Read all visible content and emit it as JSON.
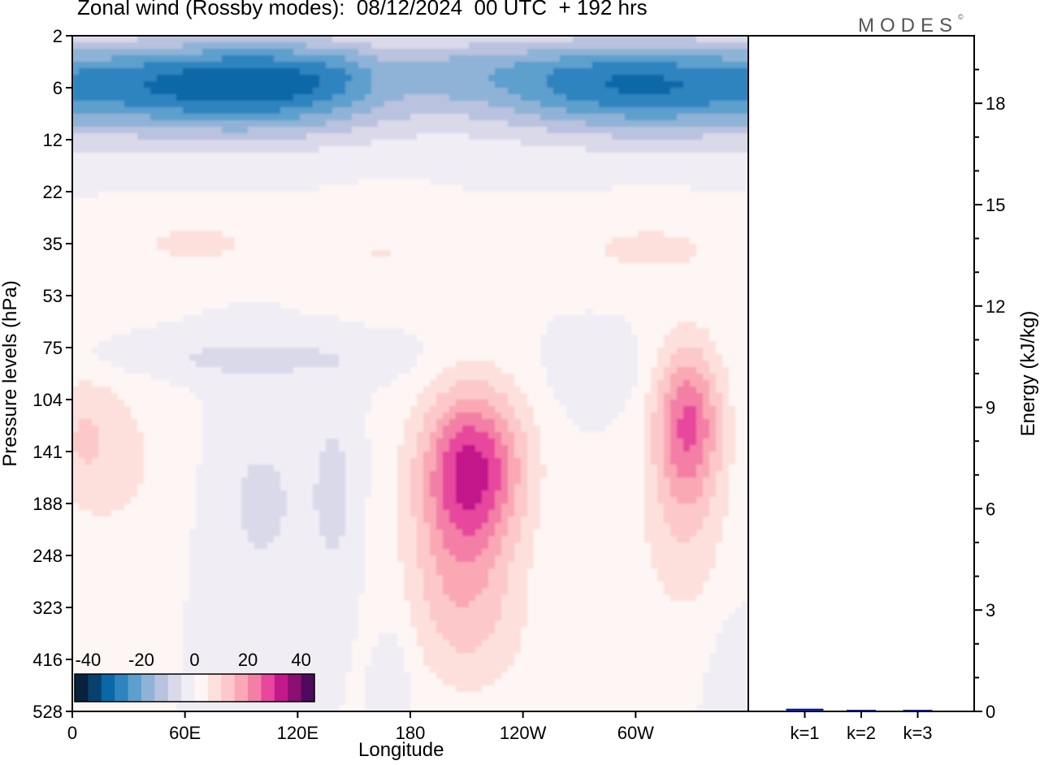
{
  "title": "Zonal wind (Rossby modes):  08/12/2024  00 UTC  + 192 hrs",
  "brand": "MODES",
  "brand_mark": "©",
  "chart_data": [
    {
      "type": "heatmap",
      "xlabel": "Longitude",
      "ylabel": "Pressure levels (hPa)",
      "x_ticks": [
        "0",
        "60E",
        "120E",
        "180",
        "120W",
        "60W"
      ],
      "x_range_deg_east": [
        0,
        360
      ],
      "x_tick_positions_deg_east": [
        0,
        60,
        120,
        180,
        240,
        300
      ],
      "y_ticks": [
        "2",
        "6",
        "12",
        "22",
        "35",
        "53",
        "75",
        "104",
        "141",
        "188",
        "248",
        "323",
        "416",
        "528"
      ],
      "y_range_hPa": [
        2,
        528
      ],
      "colorbar": {
        "tick_labels": [
          "-40",
          "-20",
          "0",
          "20",
          "40"
        ],
        "levels": [
          -45,
          -40,
          -35,
          -30,
          -25,
          -20,
          -15,
          -10,
          -5,
          0,
          5,
          10,
          15,
          20,
          25,
          30,
          35,
          40,
          45
        ],
        "colors": [
          "#08213f",
          "#08406e",
          "#0868a8",
          "#2f84bf",
          "#5d9fcd",
          "#8fb3d6",
          "#b9c2de",
          "#dad9ea",
          "#f0edf5",
          "#fdf6f4",
          "#fde0dc",
          "#fcc8c9",
          "#f9a8b4",
          "#f37fa6",
          "#e7479c",
          "#c3198b",
          "#8c0f74",
          "#4d0a5e"
        ]
      },
      "features": [
        {
          "type": "easterly jet",
          "region": "upper levels 4-14 hPa, all longitudes",
          "min_value": -35
        },
        {
          "type": "westerly maximum",
          "center_lon_deg_east": 215,
          "center_level_hPa": 150,
          "max_value": 30
        },
        {
          "type": "westerly maximum",
          "center_lon_deg_east": 330,
          "center_level_hPa": 130,
          "max_value": 25
        },
        {
          "type": "weak easterlies",
          "region": "0-170E, 70-260 hPa",
          "value": -5
        }
      ]
    },
    {
      "type": "bar",
      "ylabel": "Energy (kJ/kg)",
      "y_ticks": [
        "0",
        "3",
        "6",
        "9",
        "12",
        "15",
        "18"
      ],
      "ylim": [
        0,
        20
      ],
      "categories": [
        "k=1",
        "k=2",
        "k=3"
      ],
      "values": [
        0.08,
        0.02,
        0.01
      ],
      "colors": [
        "#0d1a8c",
        "#0d1a8c",
        "#0d1a8c"
      ]
    }
  ]
}
